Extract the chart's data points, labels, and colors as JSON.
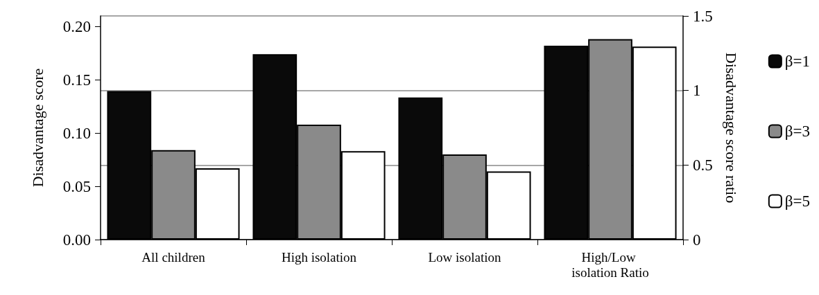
{
  "chart_data": {
    "type": "bar",
    "categories": [
      "All children",
      "High isolation",
      "Low isolation",
      "High/Low isolation Ratio"
    ],
    "ylabel": "Disadvantage score",
    "y2label": "Disadvantage score ratio",
    "ylim": [
      0,
      0.21
    ],
    "yticks": [
      {
        "value": 0,
        "label": "0.00"
      },
      {
        "value": 0.05,
        "label": "0.05"
      },
      {
        "value": 0.1,
        "label": "0.10"
      },
      {
        "value": 0.15,
        "label": "0.15"
      },
      {
        "value": 0.2,
        "label": "0.20"
      }
    ],
    "y2lim": [
      0,
      1.5
    ],
    "y2ticks": [
      0,
      0.5,
      1,
      1.5
    ],
    "grid": "y2",
    "legend": "right",
    "series": [
      {
        "name": "β=1",
        "color": "#0a0a0a",
        "values": [
          0.1395,
          0.174,
          0.1335,
          null
        ]
      },
      {
        "name": "β=3",
        "color": "#8a8a8a",
        "values": [
          0.084,
          0.108,
          0.08,
          null
        ]
      },
      {
        "name": "β=5",
        "color": "#ffffff",
        "values": [
          0.067,
          0.083,
          0.064,
          null
        ]
      },
      {
        "color": "#0a0a0a",
        "axis": "y2",
        "values": [
          null,
          null,
          null,
          1.3
        ]
      },
      {
        "color": "#8a8a8a",
        "axis": "y2",
        "values": [
          null,
          null,
          null,
          1.345
        ]
      },
      {
        "color": "#ffffff",
        "axis": "y2",
        "values": [
          null,
          null,
          null,
          1.295
        ]
      }
    ]
  }
}
